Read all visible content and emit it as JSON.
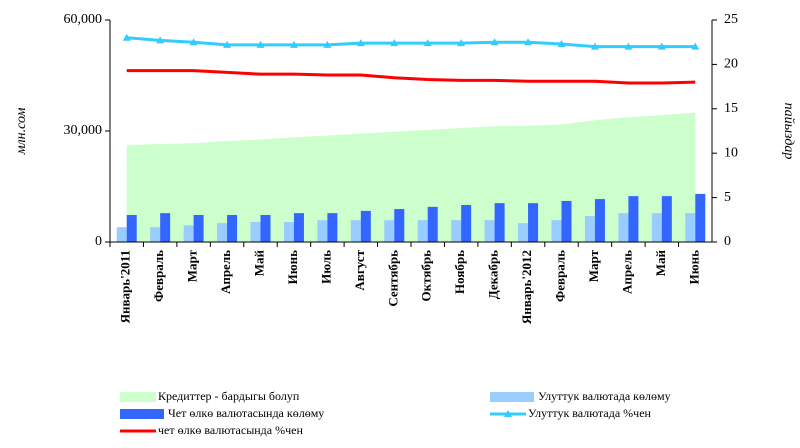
{
  "chart_data": {
    "type": "combo",
    "categories": [
      "Январь'2011",
      "Февраль",
      "Март",
      "Апрель",
      "Май",
      "Июнь",
      "Июль",
      "Август",
      "Сентябрь",
      "Октябрь",
      "Ноябрь",
      "Декабрь",
      "Январь'2012",
      "Февраль",
      "Март",
      "Апрель",
      "Май",
      "Июнь"
    ],
    "ylabel": "млн.сом",
    "y2label": "пайыздар",
    "ylim": [
      0,
      60000
    ],
    "yticks": [
      0,
      {
        "value": 30000,
        "label": "30,000"
      },
      {
        "value": 60000,
        "label": "60,000"
      }
    ],
    "y2lim": [
      0,
      25
    ],
    "y2ticks": [
      0,
      5,
      10,
      15,
      20,
      25
    ],
    "series": [
      {
        "name": "Кредиттер - бардыгы болуп",
        "type": "area",
        "color": "#ccffcc",
        "values": [
          26200,
          26500,
          26700,
          27300,
          27700,
          28300,
          28800,
          29300,
          29800,
          30300,
          30800,
          31300,
          31400,
          31800,
          32900,
          33700,
          34300,
          35000
        ]
      },
      {
        "name": "Улуттук валютада көлөму",
        "type": "bar",
        "color": "#99ccff",
        "values": [
          4000,
          4000,
          4500,
          5100,
          5400,
          5400,
          5900,
          5900,
          5900,
          5900,
          5900,
          5900,
          5100,
          5900,
          7000,
          7800,
          7800,
          7800
        ]
      },
      {
        "name": "Чет өлкө валютасында көлөму",
        "type": "bar",
        "color": "#3366ff",
        "values": [
          7300,
          7800,
          7300,
          7300,
          7300,
          7800,
          7800,
          8400,
          8900,
          9500,
          10000,
          10500,
          10500,
          11100,
          11600,
          12400,
          12400,
          13000
        ]
      },
      {
        "name": "Улуттук валютада %чен",
        "type": "line",
        "axis": "y2",
        "marker": "triangle",
        "color": "#33ccff",
        "values": [
          23.0,
          22.7,
          22.5,
          22.2,
          22.2,
          22.2,
          22.2,
          22.4,
          22.4,
          22.4,
          22.4,
          22.5,
          22.5,
          22.3,
          22.0,
          22.0,
          22.0,
          22.0
        ]
      },
      {
        "name": "чет өлкө валютасында %чен",
        "type": "line",
        "axis": "y2",
        "color": "#ff0000",
        "values": [
          19.3,
          19.3,
          19.3,
          19.1,
          18.9,
          18.9,
          18.8,
          18.8,
          18.5,
          18.3,
          18.2,
          18.2,
          18.1,
          18.1,
          18.1,
          17.9,
          17.9,
          18.0
        ]
      }
    ]
  }
}
